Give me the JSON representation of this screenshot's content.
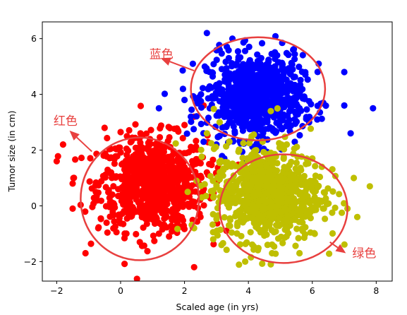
{
  "chart_data": {
    "type": "scatter",
    "title": "",
    "xlabel": "Scaled age (in yrs)",
    "ylabel": "Tumor size (in cm)",
    "xlim": [
      -2.45,
      8.5
    ],
    "ylim": [
      -2.7,
      6.6
    ],
    "xticks": [
      -2,
      0,
      2,
      4,
      6,
      8
    ],
    "yticks": [
      -2,
      0,
      2,
      4,
      6
    ],
    "xtick_labels": [
      "−2",
      "0",
      "2",
      "4",
      "6",
      "8"
    ],
    "ytick_labels": [
      "−2",
      "0",
      "2",
      "4",
      "6"
    ],
    "grid": false,
    "legend": "none",
    "series": [
      {
        "color": "#ff0000",
        "cluster": {
          "n": 800,
          "mean": [
            1.0,
            0.8
          ],
          "sd": [
            0.85,
            0.85
          ]
        },
        "points": [
          [
            -2.0,
            1.6
          ],
          [
            -1.8,
            2.2
          ],
          [
            -1.5,
            0.8
          ],
          [
            -1.5,
            -0.1
          ],
          [
            -1.1,
            -1.7
          ],
          [
            -0.5,
            2.8
          ],
          [
            0.2,
            2.5
          ],
          [
            1.8,
            2.7
          ],
          [
            2.0,
            2.9
          ],
          [
            2.3,
            3.2
          ],
          [
            2.6,
            3.6
          ],
          [
            2.3,
            -2.2
          ],
          [
            1.2,
            -1.0
          ],
          [
            0.6,
            -1.3
          ],
          [
            -0.3,
            1.2
          ],
          [
            -0.7,
            -0.8
          ],
          [
            2.7,
            1.2
          ],
          [
            2.9,
            0.3
          ],
          [
            3.0,
            0.9
          ],
          [
            2.5,
            -0.4
          ]
        ]
      },
      {
        "color": "#0000ff",
        "cluster": {
          "n": 800,
          "mean": [
            4.2,
            3.9
          ],
          "sd": [
            0.75,
            0.75
          ]
        },
        "points": [
          [
            2.7,
            6.2
          ],
          [
            3.5,
            6.0
          ],
          [
            5.4,
            5.6
          ],
          [
            6.2,
            5.1
          ],
          [
            7.0,
            4.8
          ],
          [
            7.0,
            3.6
          ],
          [
            7.9,
            3.5
          ],
          [
            7.2,
            2.6
          ],
          [
            1.2,
            3.5
          ],
          [
            2.2,
            3.2
          ],
          [
            2.0,
            3.8
          ],
          [
            2.6,
            2.3
          ],
          [
            3.0,
            2.2
          ],
          [
            3.2,
            1.6
          ],
          [
            4.3,
            2.0
          ],
          [
            5.6,
            3.5
          ],
          [
            3.1,
            5.6
          ],
          [
            4.4,
            5.3
          ],
          [
            4.9,
            5.4
          ],
          [
            5.9,
            3.0
          ]
        ]
      },
      {
        "color": "#bfbf00",
        "cluster": {
          "n": 800,
          "mean": [
            4.6,
            0.45
          ],
          "sd": [
            0.85,
            0.85
          ]
        },
        "points": [
          [
            7.3,
            1.0
          ],
          [
            7.8,
            0.7
          ],
          [
            7.1,
            -0.1
          ],
          [
            3.9,
            -2.0
          ],
          [
            4.6,
            -1.4
          ],
          [
            4.7,
            -2.1
          ],
          [
            5.6,
            -1.7
          ],
          [
            6.3,
            1.4
          ],
          [
            2.7,
            2.6
          ],
          [
            3.1,
            3.0
          ],
          [
            4.7,
            3.4
          ],
          [
            2.1,
            0.5
          ],
          [
            2.3,
            -0.8
          ],
          [
            2.9,
            -1.2
          ],
          [
            5.2,
            2.2
          ],
          [
            6.2,
            0.2
          ],
          [
            5.7,
            -0.9
          ],
          [
            3.4,
            2.3
          ],
          [
            4.1,
            2.5
          ],
          [
            6.0,
            1.7
          ]
        ]
      }
    ],
    "annotations": [
      {
        "text": "蓝色",
        "text_at": [
          0.9,
          5.3
        ],
        "arrow_to": [
          2.3,
          4.8
        ],
        "ellipse": {
          "center": [
            4.3,
            4.2
          ],
          "radii": [
            2.1,
            1.85
          ]
        }
      },
      {
        "text": "红色",
        "text_at": [
          -2.1,
          2.9
        ],
        "arrow_to": [
          -1.55,
          2.75
        ],
        "ellipse": {
          "center": [
            0.6,
            0.25
          ],
          "radii": [
            1.85,
            2.2
          ]
        }
      },
      {
        "text": "绿色",
        "text_at": [
          7.25,
          -1.85
        ],
        "arrow_to": [
          7.0,
          -1.65
        ],
        "ellipse": {
          "center": [
            5.1,
            -0.1
          ],
          "radii": [
            2.0,
            1.95
          ]
        }
      }
    ],
    "annotation_color": "#e8403f"
  }
}
